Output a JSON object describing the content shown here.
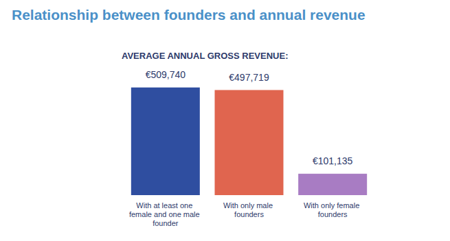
{
  "chart_data": {
    "type": "bar",
    "title": "Relationship between founders and annual revenue",
    "subtitle": "AVERAGE ANNUAL GROSS REVENUE:",
    "categories": [
      "With at least one female and one male founder",
      "With only male founders",
      "With only female founders"
    ],
    "values": [
      509740,
      497719,
      101135
    ],
    "value_labels": [
      "€509,740",
      "€497,719",
      "€101,135"
    ],
    "colors": [
      "#2f4ea0",
      "#e0654f",
      "#a87cc3"
    ],
    "ylim": [
      0,
      600000
    ],
    "data_labels": true,
    "tick_labels": false,
    "grid": false
  }
}
